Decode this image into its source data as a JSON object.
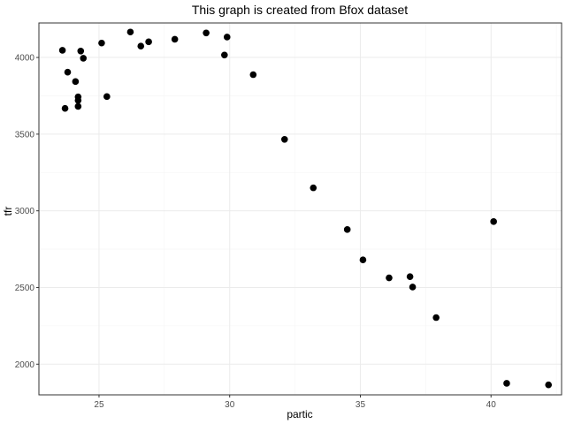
{
  "chart_data": {
    "type": "scatter",
    "title": "This graph is created from Bfox dataset",
    "xlabel": "partic",
    "ylabel": "tfr",
    "xlim": [
      22.7,
      42.7
    ],
    "ylim": [
      1800,
      4225
    ],
    "x_ticks": [
      25,
      30,
      35,
      40
    ],
    "y_ticks": [
      2000,
      2500,
      3000,
      3500,
      4000
    ],
    "x_tick_labels": [
      "25",
      "30",
      "35",
      "40"
    ],
    "y_tick_labels": [
      "2000",
      "2500",
      "3000",
      "3500",
      "4000"
    ],
    "grid": true,
    "point_color": "#000000",
    "points": [
      {
        "x": 23.6,
        "y": 4047
      },
      {
        "x": 23.8,
        "y": 3904
      },
      {
        "x": 24.1,
        "y": 3843
      },
      {
        "x": 24.2,
        "y": 3743
      },
      {
        "x": 24.2,
        "y": 3720
      },
      {
        "x": 24.2,
        "y": 3681
      },
      {
        "x": 23.7,
        "y": 3668
      },
      {
        "x": 24.3,
        "y": 4042
      },
      {
        "x": 24.4,
        "y": 3995
      },
      {
        "x": 25.1,
        "y": 4094
      },
      {
        "x": 25.3,
        "y": 3745
      },
      {
        "x": 26.2,
        "y": 4166
      },
      {
        "x": 26.6,
        "y": 4074
      },
      {
        "x": 26.9,
        "y": 4102
      },
      {
        "x": 27.9,
        "y": 4119
      },
      {
        "x": 29.1,
        "y": 4160
      },
      {
        "x": 29.8,
        "y": 4016
      },
      {
        "x": 29.9,
        "y": 4133
      },
      {
        "x": 30.9,
        "y": 3888
      },
      {
        "x": 32.1,
        "y": 3466
      },
      {
        "x": 33.2,
        "y": 3150
      },
      {
        "x": 34.5,
        "y": 2878
      },
      {
        "x": 35.1,
        "y": 2680
      },
      {
        "x": 36.1,
        "y": 2563
      },
      {
        "x": 36.9,
        "y": 2571
      },
      {
        "x": 37.0,
        "y": 2503
      },
      {
        "x": 37.9,
        "y": 2304
      },
      {
        "x": 40.1,
        "y": 2930
      },
      {
        "x": 40.6,
        "y": 1875
      },
      {
        "x": 42.2,
        "y": 1865
      }
    ]
  }
}
